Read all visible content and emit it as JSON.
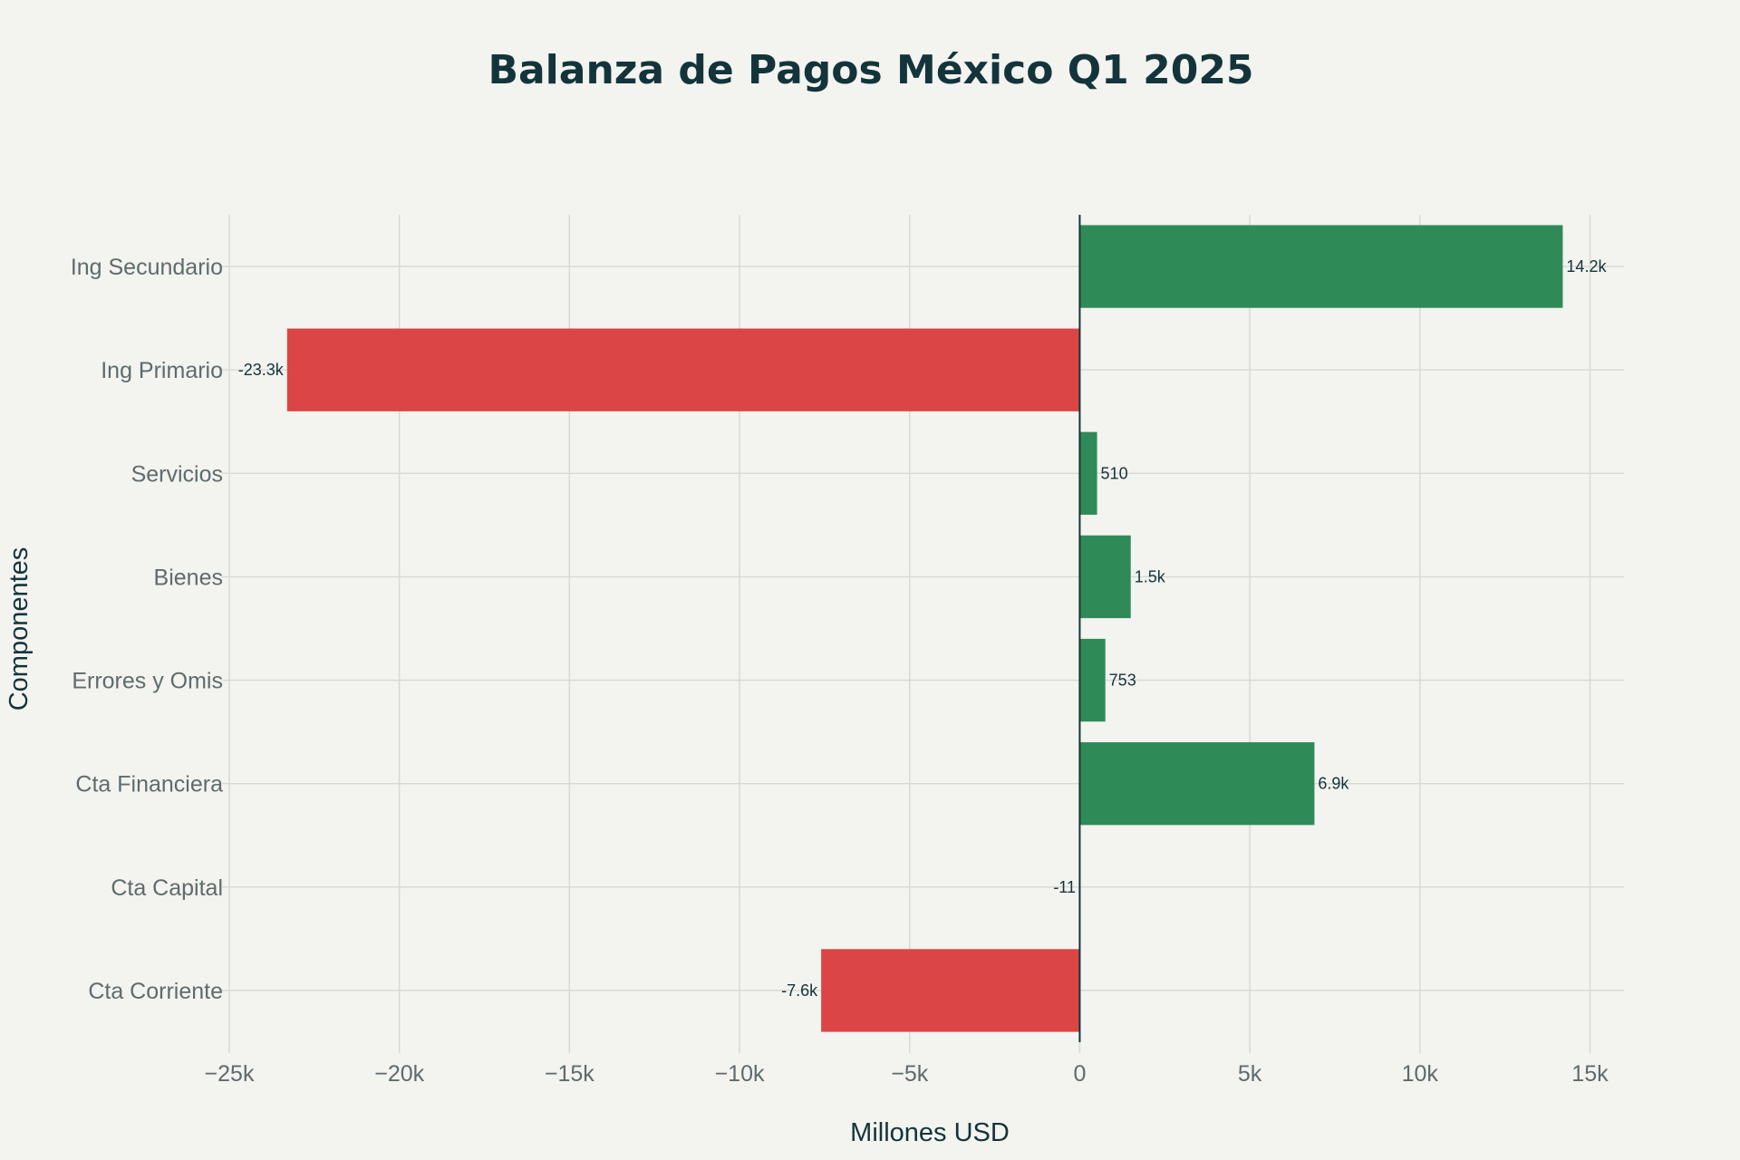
{
  "chart_data": {
    "type": "bar",
    "orientation": "horizontal",
    "title": "Balanza de Pagos México Q1 2025",
    "xlabel": "Millones USD",
    "ylabel": "Componentes",
    "categories": [
      "Ing Secundario",
      "Ing Primario",
      "Servicios",
      "Bienes",
      "Errores y Omis",
      "Cta Financiera",
      "Cta Capital",
      "Cta Corriente"
    ],
    "values": [
      14200,
      -23300,
      510,
      1500,
      753,
      6900,
      -11,
      -7600
    ],
    "data_labels": [
      "14.2k",
      "-23.3k",
      "510",
      "1.5k",
      "753",
      "6.9k",
      "-11",
      "-7.6k"
    ],
    "xlim": [
      -25000,
      16000
    ],
    "xticks": [
      -25000,
      -20000,
      -15000,
      -10000,
      -5000,
      0,
      5000,
      10000,
      15000
    ],
    "xtick_labels": [
      "−25k",
      "−20k",
      "−15k",
      "−10k",
      "−5k",
      "0",
      "5k",
      "10k",
      "15k"
    ],
    "grid": true,
    "legend": "none",
    "colors": {
      "positive": "#2e8b57",
      "negative": "#db4545"
    }
  }
}
